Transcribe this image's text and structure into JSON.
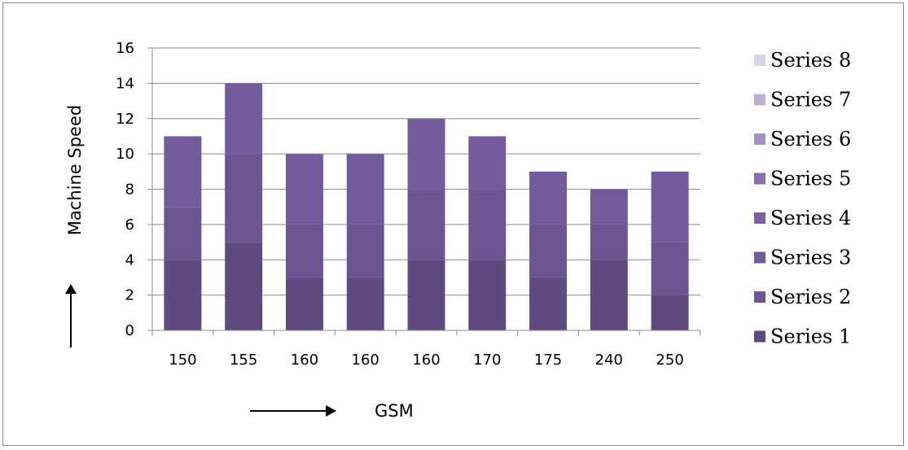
{
  "chart_data": {
    "type": "bar",
    "stacked": true,
    "categories": [
      "150",
      "155",
      "160",
      "160",
      "160",
      "170",
      "175",
      "240",
      "250"
    ],
    "series": [
      {
        "name": "Series 1",
        "color": "#5e4a7f",
        "values": [
          4,
          5,
          3,
          3,
          4,
          4,
          3,
          4,
          2
        ]
      },
      {
        "name": "Series 2",
        "color": "#6b5491",
        "values": [
          3,
          5,
          3,
          3,
          4,
          4,
          3,
          2,
          3
        ]
      },
      {
        "name": "Series 3",
        "color": "#735a9c",
        "values": [
          4,
          4,
          4,
          4,
          4,
          3,
          3,
          2,
          4
        ]
      },
      {
        "name": "Series 4",
        "color": "#7d5fa7",
        "values": [
          0,
          0,
          0,
          0,
          0,
          0,
          0,
          0,
          0
        ]
      },
      {
        "name": "Series 5",
        "color": "#8a6cb3",
        "values": [
          0,
          0,
          0,
          0,
          0,
          0,
          0,
          0,
          0
        ]
      },
      {
        "name": "Series 6",
        "color": "#a493c2",
        "values": [
          0,
          0,
          0,
          0,
          0,
          0,
          0,
          0,
          0
        ]
      },
      {
        "name": "Series 7",
        "color": "#bcb0d3",
        "values": [
          0,
          0,
          0,
          0,
          0,
          0,
          0,
          0,
          0
        ]
      },
      {
        "name": "Series 8",
        "color": "#d7d0e6",
        "values": [
          0,
          0,
          0,
          0,
          0,
          0,
          0,
          0,
          0
        ]
      }
    ],
    "totals": [
      11,
      14,
      10,
      10,
      12,
      11,
      9,
      8,
      9
    ],
    "xlabel": "GSM",
    "ylabel": "Machine Speed",
    "ylim": [
      0,
      16
    ],
    "ytick_step": 2,
    "grid": true,
    "legend_position": "right",
    "axis_arrows": true
  }
}
